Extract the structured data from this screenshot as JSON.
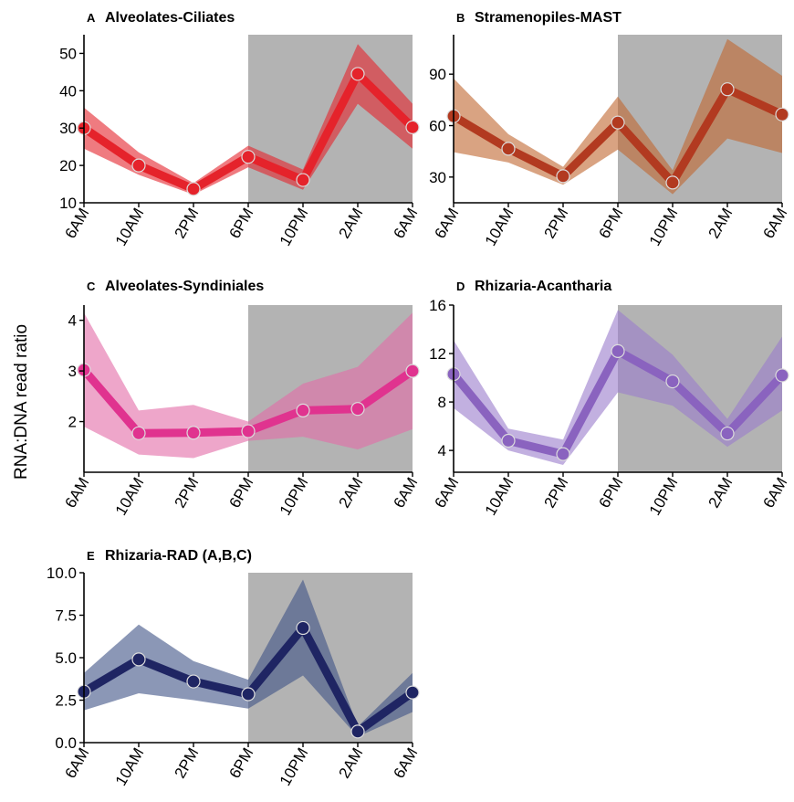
{
  "figure": {
    "y_axis_label": "RNA:DNA read ratio",
    "night_period": [
      "6PM",
      "6AM"
    ],
    "night_shading_color": "#b3b3b3"
  },
  "chart_data": [
    {
      "type": "line",
      "letter": "A",
      "title": "Alveolates-Ciliates",
      "categories": [
        "6AM",
        "10AM",
        "2PM",
        "6PM",
        "10PM",
        "2AM",
        "6AM"
      ],
      "values": [
        30,
        20,
        13.7,
        22.3,
        16.1,
        44.5,
        30.2
      ],
      "lower": [
        24.5,
        17.5,
        12.2,
        19.5,
        13.5,
        36.5,
        24.5
      ],
      "upper": [
        35.5,
        23.5,
        15.3,
        25.3,
        18.9,
        52.5,
        36.5
      ],
      "ylim": [
        10,
        55
      ],
      "yticks": [
        10,
        20,
        30,
        40,
        50
      ],
      "ytick_labels": [
        "10",
        "20",
        "30",
        "40",
        "50"
      ],
      "color": "#e5232b",
      "band_color": "#e5232b"
    },
    {
      "type": "line",
      "letter": "B",
      "title": "Stramenopiles-MAST",
      "categories": [
        "6AM",
        "10AM",
        "2PM",
        "6PM",
        "10PM",
        "2AM",
        "6AM"
      ],
      "values": [
        65.5,
        46.5,
        30.5,
        61.8,
        26.8,
        81.2,
        66.5
      ],
      "lower": [
        44.5,
        38.5,
        25.5,
        46,
        20,
        52.5,
        44
      ],
      "upper": [
        87.5,
        55,
        36,
        77,
        34,
        110.5,
        89
      ],
      "ylim": [
        15,
        113
      ],
      "yticks": [
        30,
        60,
        90
      ],
      "ytick_labels": [
        "30",
        "60",
        "90"
      ],
      "color": "#b23a20",
      "band_color": "#c0662e"
    },
    {
      "type": "line",
      "letter": "C",
      "title": "Alveolates-Syndiniales",
      "categories": [
        "6AM",
        "10AM",
        "2PM",
        "6PM",
        "10PM",
        "2AM",
        "6AM"
      ],
      "values": [
        3.02,
        1.77,
        1.78,
        1.81,
        2.22,
        2.25,
        3.0
      ],
      "lower": [
        1.9,
        1.35,
        1.28,
        1.62,
        1.7,
        1.45,
        1.85
      ],
      "upper": [
        4.15,
        2.22,
        2.33,
        2.0,
        2.75,
        3.08,
        4.15
      ],
      "ylim": [
        1.0,
        4.3
      ],
      "yticks": [
        2,
        3,
        4
      ],
      "ytick_labels": [
        "2",
        "3",
        "4"
      ],
      "color": "#e0338f",
      "band_color": "#e26aa6"
    },
    {
      "type": "line",
      "letter": "D",
      "title": "Rhizaria-Acantharia",
      "categories": [
        "6AM",
        "10AM",
        "2PM",
        "6PM",
        "10PM",
        "2AM",
        "6AM"
      ],
      "values": [
        10.3,
        4.8,
        3.7,
        12.2,
        9.7,
        5.4,
        10.2
      ],
      "lower": [
        7.5,
        4.0,
        2.8,
        8.8,
        7.7,
        4.3,
        7.3
      ],
      "upper": [
        13.1,
        5.8,
        4.9,
        15.6,
        11.9,
        6.6,
        13.4
      ],
      "ylim": [
        2.2,
        16
      ],
      "yticks": [
        4,
        8,
        12,
        16
      ],
      "ytick_labels": [
        "4",
        "8",
        "12",
        "16"
      ],
      "color": "#8a63bf",
      "band_color": "#9a7ccc"
    },
    {
      "type": "line",
      "letter": "E",
      "title": "Rhizaria-RAD (A,B,C)",
      "categories": [
        "6AM",
        "10AM",
        "2PM",
        "6PM",
        "10PM",
        "2AM",
        "6AM"
      ],
      "values": [
        3.0,
        4.9,
        3.6,
        2.85,
        6.75,
        0.65,
        2.95
      ],
      "lower": [
        1.9,
        2.9,
        2.5,
        2.0,
        3.95,
        0.35,
        1.8
      ],
      "upper": [
        4.1,
        6.95,
        4.8,
        3.7,
        9.6,
        0.95,
        4.1
      ],
      "ylim": [
        0,
        10
      ],
      "yticks": [
        0,
        2.5,
        5,
        7.5,
        10
      ],
      "ytick_labels": [
        "0.0",
        "2.5",
        "5.0",
        "7.5",
        "10.0"
      ],
      "color": "#1f2563",
      "band_color": "#3e5285"
    }
  ]
}
